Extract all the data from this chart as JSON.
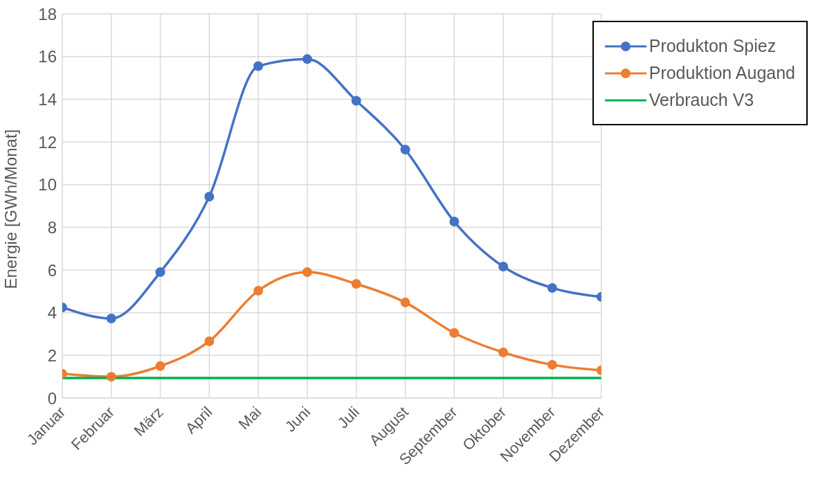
{
  "chart_data": {
    "type": "line",
    "ylabel": "Energie [GWh/Monat]",
    "categories": [
      "Januar",
      "Februar",
      "März",
      "April",
      "Mai",
      "Juni",
      "Juli",
      "August",
      "September",
      "Oktober",
      "November",
      "Dezember"
    ],
    "series": [
      {
        "name": "Produkton Spiez",
        "color": "#4472c4",
        "values": [
          4.25,
          3.73,
          5.9,
          9.44,
          15.55,
          15.88,
          13.93,
          11.64,
          8.27,
          6.16,
          5.16,
          4.74
        ]
      },
      {
        "name": "Produktion Augand",
        "color": "#ed7d31",
        "values": [
          1.14,
          1.0,
          1.5,
          2.66,
          5.03,
          5.9,
          5.35,
          4.48,
          3.05,
          2.14,
          1.56,
          1.3
        ]
      },
      {
        "name": "Verbrauch V3",
        "color": "#00b050",
        "marker": "none",
        "values": [
          0.94,
          0.94,
          0.94,
          0.94,
          0.94,
          0.94,
          0.94,
          0.94,
          0.94,
          0.94,
          0.94,
          0.94
        ]
      }
    ],
    "ylim": [
      0,
      18
    ],
    "yticks": [
      0,
      2,
      4,
      6,
      8,
      10,
      12,
      14,
      16,
      18
    ],
    "grid": true,
    "legend": "top right",
    "marker": "circle",
    "line_style": "solid"
  }
}
